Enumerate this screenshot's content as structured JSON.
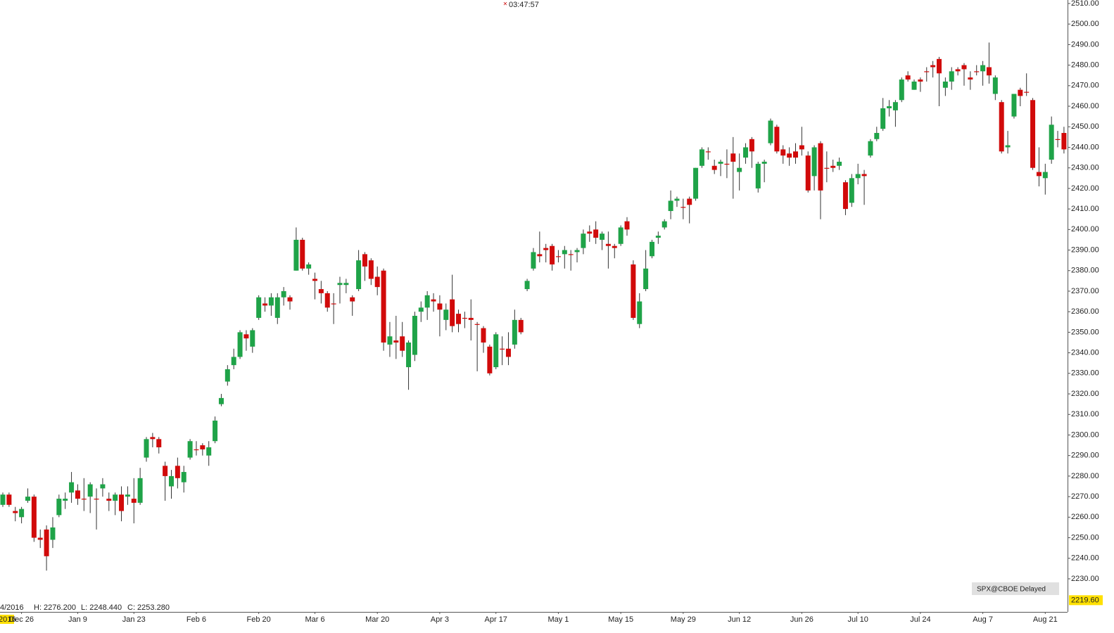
{
  "chart_data": {
    "type": "candlestick",
    "timer": "03:47:57",
    "badge": "SPX@CBOE Delayed",
    "year_label": "2016",
    "info": {
      "date": "4/2016",
      "high": "H: 2276.200",
      "low": "L: 2248.440",
      "close": "C: 2253.280"
    },
    "last_price": {
      "value": 2219.6,
      "label": "2219.60"
    },
    "up_color": "#1fa348",
    "down_color": "#d10a0a",
    "wick_color": "#333333",
    "ylim": [
      2213.9,
      2511.7
    ],
    "yticks": [
      {
        "value": 2230,
        "label": "2230.00"
      },
      {
        "value": 2240,
        "label": "2240.00"
      },
      {
        "value": 2250,
        "label": "2250.00"
      },
      {
        "value": 2260,
        "label": "2260.00"
      },
      {
        "value": 2270,
        "label": "2270.00"
      },
      {
        "value": 2280,
        "label": "2280.00"
      },
      {
        "value": 2290,
        "label": "2290.00"
      },
      {
        "value": 2300,
        "label": "2300.00"
      },
      {
        "value": 2310,
        "label": "2310.00"
      },
      {
        "value": 2320,
        "label": "2320.00"
      },
      {
        "value": 2330,
        "label": "2330.00"
      },
      {
        "value": 2340,
        "label": "2340.00"
      },
      {
        "value": 2350,
        "label": "2350.00"
      },
      {
        "value": 2360,
        "label": "2360.00"
      },
      {
        "value": 2370,
        "label": "2370.00"
      },
      {
        "value": 2380,
        "label": "2380.00"
      },
      {
        "value": 2390,
        "label": "2390.00"
      },
      {
        "value": 2400,
        "label": "2400.00"
      },
      {
        "value": 2410,
        "label": "2410.00"
      },
      {
        "value": 2420,
        "label": "2420.00"
      },
      {
        "value": 2430,
        "label": "2430.00"
      },
      {
        "value": 2440,
        "label": "2440.00"
      },
      {
        "value": 2450,
        "label": "2450.00"
      },
      {
        "value": 2460,
        "label": "2460.00"
      },
      {
        "value": 2470,
        "label": "2470.00"
      },
      {
        "value": 2480,
        "label": "2480.00"
      },
      {
        "value": 2490,
        "label": "2490.00"
      },
      {
        "value": 2500,
        "label": "2500.00"
      },
      {
        "value": 2510,
        "label": "2510.00"
      }
    ],
    "categories": [
      null,
      null,
      null,
      "Dec 26",
      null,
      null,
      null,
      null,
      null,
      null,
      null,
      null,
      "Jan 9",
      null,
      null,
      null,
      null,
      null,
      null,
      null,
      null,
      "Jan 23",
      null,
      null,
      null,
      null,
      null,
      null,
      null,
      null,
      null,
      "Feb 6",
      null,
      null,
      null,
      null,
      null,
      null,
      null,
      null,
      null,
      "Feb 20",
      null,
      null,
      null,
      null,
      null,
      null,
      null,
      null,
      "Mar 6",
      null,
      null,
      null,
      null,
      null,
      null,
      null,
      null,
      null,
      "Mar 20",
      null,
      null,
      null,
      null,
      null,
      null,
      null,
      null,
      null,
      "Apr 3",
      null,
      null,
      null,
      null,
      null,
      null,
      null,
      null,
      "Apr 17",
      null,
      null,
      null,
      null,
      null,
      null,
      null,
      null,
      null,
      "May 1",
      null,
      null,
      null,
      null,
      null,
      null,
      null,
      null,
      null,
      "May 15",
      null,
      null,
      null,
      null,
      null,
      null,
      null,
      null,
      null,
      "May 29",
      null,
      null,
      null,
      null,
      null,
      null,
      null,
      null,
      "Jun 12",
      null,
      null,
      null,
      null,
      null,
      null,
      null,
      null,
      null,
      "Jun 26",
      null,
      null,
      null,
      null,
      null,
      null,
      null,
      null,
      "Jul 10",
      null,
      null,
      null,
      null,
      null,
      null,
      null,
      null,
      null,
      "Jul 24",
      null,
      null,
      null,
      null,
      null,
      null,
      null,
      null,
      null,
      "Aug 7",
      null,
      null,
      null,
      null,
      null,
      null,
      null,
      null,
      null,
      "Aug 21",
      null,
      null,
      null
    ],
    "open": [
      2266,
      2271,
      2263,
      2260,
      2268,
      2270,
      2250,
      2254,
      2249,
      2261,
      2268,
      2272,
      2273,
      2269,
      2270,
      2269,
      2274,
      2269,
      2268,
      2271,
      2270,
      2269,
      2267,
      2289,
      2299,
      2298,
      2285,
      2275,
      2285,
      2277,
      2289,
      2293,
      2295,
      2290,
      2297,
      2315,
      2326,
      2334,
      2338,
      2349,
      2343,
      2357,
      2364,
      2363,
      2357,
      2367,
      2367,
      2380,
      2395,
      2381,
      2376,
      2371,
      2369,
      2364,
      2373,
      2373,
      2367,
      2371,
      2388,
      2385,
      2377,
      2380,
      2344,
      2346,
      2348,
      2333,
      2339,
      2360,
      2362,
      2366,
      2364,
      2356,
      2366,
      2359,
      2357,
      2357,
      2354,
      2352,
      2343,
      2333,
      2342,
      2342,
      2344,
      2356,
      2371,
      2381,
      2388,
      2391,
      2392,
      2387,
      2388,
      2388,
      2389,
      2391,
      2399,
      2400,
      2395,
      2393,
      2392,
      2393,
      2404,
      2383,
      2354,
      2371,
      2387,
      2396,
      2401,
      2409,
      2414,
      2411,
      2415,
      2415,
      2431,
      2438,
      2431,
      2432,
      2432,
      2437,
      2428,
      2435,
      2444,
      2420,
      2432,
      2442,
      2450,
      2439,
      2437,
      2438,
      2441,
      2436,
      2426,
      2442,
      2430,
      2431,
      2431,
      2423,
      2413,
      2425,
      2427,
      2436,
      2444,
      2449,
      2459,
      2458,
      2463,
      2475,
      2468,
      2473,
      2477,
      2480,
      2483,
      2469,
      2472,
      2478,
      2480,
      2474,
      2477,
      2477,
      2479,
      2466,
      2462,
      2440,
      2455,
      2468,
      2467,
      2463,
      2428,
      2425,
      2434,
      2444,
      2447
    ],
    "high": [
      2272,
      2272,
      2265,
      2265,
      2274,
      2271,
      2254,
      2256,
      2260,
      2271,
      2272,
      2282,
      2276,
      2279,
      2277,
      2274,
      2279,
      2272,
      2272,
      2275,
      2275,
      2279,
      2284,
      2299,
      2301,
      2299,
      2287,
      2283,
      2289,
      2285,
      2298,
      2297,
      2296,
      2297,
      2309,
      2320,
      2334,
      2342,
      2351,
      2351,
      2352,
      2368,
      2367,
      2369,
      2369,
      2372,
      2368,
      2401,
      2396,
      2384,
      2379,
      2375,
      2370,
      2369,
      2377,
      2376,
      2368,
      2390,
      2389,
      2386,
      2382,
      2381,
      2355,
      2358,
      2355,
      2346,
      2360,
      2365,
      2370,
      2369,
      2368,
      2364,
      2378,
      2361,
      2360,
      2366,
      2355,
      2353,
      2344,
      2350,
      2348,
      2350,
      2361,
      2357,
      2376,
      2391,
      2399,
      2393,
      2393,
      2390,
      2392,
      2390,
      2391,
      2400,
      2402,
      2404,
      2399,
      2399,
      2393,
      2402,
      2406,
      2385,
      2369,
      2390,
      2395,
      2399,
      2405,
      2419,
      2416,
      2415,
      2416,
      2430,
      2440,
      2440,
      2434,
      2434,
      2439,
      2445,
      2437,
      2442,
      2445,
      2433,
      2434,
      2454,
      2451,
      2441,
      2440,
      2442,
      2450,
      2438,
      2441,
      2443,
      2438,
      2434,
      2435,
      2424,
      2427,
      2432,
      2429,
      2444,
      2450,
      2464,
      2463,
      2463,
      2474,
      2477,
      2473,
      2474,
      2479,
      2482,
      2484,
      2474,
      2479,
      2479,
      2481,
      2477,
      2480,
      2482,
      2491,
      2475,
      2463,
      2448,
      2466,
      2469,
      2476,
      2464,
      2440,
      2432,
      2455,
      2448,
      2450
    ],
    "low": [
      2265,
      2265,
      2258,
      2257,
      2267,
      2248,
      2245,
      2234,
      2245,
      2260,
      2264,
      2267,
      2266,
      2263,
      2262,
      2254,
      2270,
      2263,
      2261,
      2258,
      2266,
      2257,
      2266,
      2287,
      2294,
      2291,
      2268,
      2269,
      2274,
      2272,
      2288,
      2290,
      2290,
      2285,
      2296,
      2314,
      2324,
      2332,
      2337,
      2341,
      2340,
      2356,
      2360,
      2358,
      2354,
      2363,
      2361,
      2380,
      2380,
      2378,
      2366,
      2364,
      2360,
      2354,
      2364,
      2369,
      2358,
      2370,
      2375,
      2373,
      2368,
      2341,
      2338,
      2337,
      2338,
      2322,
      2336,
      2355,
      2356,
      2360,
      2348,
      2351,
      2350,
      2350,
      2352,
      2346,
      2331,
      2340,
      2329,
      2332,
      2334,
      2334,
      2342,
      2349,
      2370,
      2380,
      2384,
      2384,
      2380,
      2384,
      2381,
      2380,
      2384,
      2388,
      2394,
      2393,
      2390,
      2381,
      2386,
      2392,
      2397,
      2356,
      2352,
      2370,
      2386,
      2393,
      2400,
      2405,
      2411,
      2405,
      2403,
      2414,
      2430,
      2434,
      2427,
      2426,
      2425,
      2415,
      2419,
      2432,
      2430,
      2418,
      2423,
      2441,
      2437,
      2432,
      2431,
      2432,
      2436,
      2418,
      2419,
      2405,
      2423,
      2428,
      2429,
      2407,
      2411,
      2422,
      2412,
      2435,
      2443,
      2448,
      2455,
      2450,
      2462,
      2472,
      2468,
      2467,
      2472,
      2474,
      2460,
      2465,
      2468,
      2475,
      2470,
      2468,
      2475,
      2470,
      2471,
      2463,
      2437,
      2437,
      2454,
      2460,
      2465,
      2429,
      2421,
      2417,
      2432,
      2440,
      2437
    ],
    "close": [
      2271,
      2266,
      2262,
      2264,
      2270,
      2250,
      2249,
      2241,
      2255,
      2269,
      2269,
      2277,
      2269,
      2269,
      2276,
      2269,
      2276,
      2268,
      2271,
      2263,
      2271,
      2267,
      2279,
      2298,
      2298,
      2294,
      2280,
      2280,
      2279,
      2282,
      2297,
      2293,
      2293,
      2294,
      2307,
      2318,
      2332,
      2338,
      2350,
      2347,
      2351,
      2367,
      2363,
      2367,
      2367,
      2370,
      2365,
      2395,
      2381,
      2383,
      2375,
      2369,
      2362,
      2364,
      2374,
      2374,
      2365,
      2385,
      2382,
      2376,
      2372,
      2345,
      2348,
      2345,
      2341,
      2345,
      2358,
      2362,
      2368,
      2365,
      2361,
      2361,
      2353,
      2354,
      2357,
      2356,
      2354,
      2345,
      2330,
      2349,
      2342,
      2338,
      2356,
      2350,
      2375,
      2389,
      2387,
      2390,
      2383,
      2387,
      2390,
      2388,
      2390,
      2398,
      2398,
      2396,
      2398,
      2392,
      2391,
      2401,
      2400,
      2357,
      2365,
      2381,
      2394,
      2397,
      2404,
      2414,
      2415,
      2411,
      2412,
      2430,
      2439,
      2438,
      2429,
      2433,
      2432,
      2433,
      2430,
      2440,
      2438,
      2432,
      2433,
      2453,
      2438,
      2436,
      2435,
      2435,
      2439,
      2419,
      2440,
      2419,
      2430,
      2430,
      2433,
      2410,
      2425,
      2427,
      2426,
      2443,
      2447,
      2459,
      2460,
      2462,
      2473,
      2473,
      2472,
      2472,
      2477,
      2479,
      2476,
      2472,
      2477,
      2477,
      2478,
      2473,
      2477,
      2480,
      2475,
      2474,
      2438,
      2441,
      2466,
      2465,
      2467,
      2430,
      2426,
      2428,
      2451,
      2444,
      2439
    ]
  }
}
